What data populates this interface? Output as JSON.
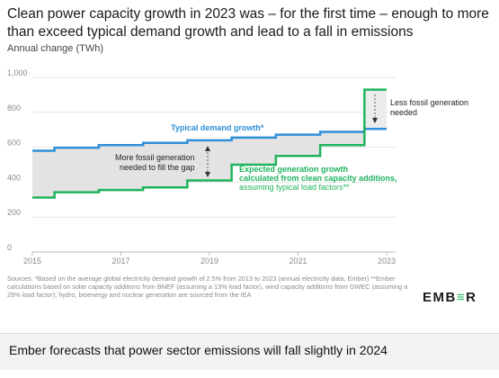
{
  "title": "Clean power capacity growth in 2023 was – for the first time – enough to more than exceed typical demand growth and lead to a fall in emissions",
  "unit_label": "Annual change (TWh)",
  "sources": "Sources: *Based on the average global electricity demand growth of 2.5% from 2013 to 2023 (annual electricity data, Ember) **Ember calculations based on solar capacity additions from BNEF (assuming a 13% load factor), wind capacity additions from GWEC (assuming a 29% load factor); hydro, bioenergy and nuclear generation are sourced from the IEA",
  "logo": {
    "main": "EMB",
    "accent": "≡",
    "tail": "R"
  },
  "footer": "Ember forecasts that power sector emissions will fall slightly in 2024",
  "colors": {
    "demand": "#2f8fd8",
    "clean": "#1fb35d",
    "gap": "#e3e3e3"
  },
  "chart_data": {
    "type": "line",
    "step": true,
    "x_ticks": [
      "2015",
      "2017",
      "2019",
      "2021",
      "2023"
    ],
    "y_ticks": [
      "0",
      "200",
      "400",
      "600",
      "800",
      "1,000"
    ],
    "ylim": [
      0,
      1000
    ],
    "xlim": [
      2015,
      2023
    ],
    "grid": true,
    "series": [
      {
        "name": "Typical demand growth*",
        "color": "#2f8fd8",
        "x": [
          2015,
          2015.5,
          2016.5,
          2017.5,
          2018.5,
          2019.5,
          2020.5,
          2021.5,
          2022.5,
          2023
        ],
        "y": [
          580,
          597,
          612,
          625,
          640,
          655,
          672,
          688,
          705,
          705
        ]
      },
      {
        "name": "Expected generation growth calculated from clean capacity additions, assuming typical load factors**",
        "color": "#1fb35d",
        "x": [
          2015,
          2015.5,
          2016.5,
          2017.5,
          2018.5,
          2019.5,
          2020.5,
          2021.5,
          2022.5,
          2023
        ],
        "y": [
          312,
          342,
          355,
          370,
          410,
          500,
          550,
          612,
          930,
          930
        ]
      }
    ],
    "annotations": {
      "demand_label": "Typical demand growth*",
      "gap_label": [
        "More fossil generation",
        "needed to fill the gap"
      ],
      "clean_label_bold": [
        "Expected generation growth",
        "calculated from clean capacity additions,"
      ],
      "clean_label_normal": "assuming typical load factors**",
      "fall_label": [
        "Less fossil generation",
        "needed"
      ]
    }
  }
}
